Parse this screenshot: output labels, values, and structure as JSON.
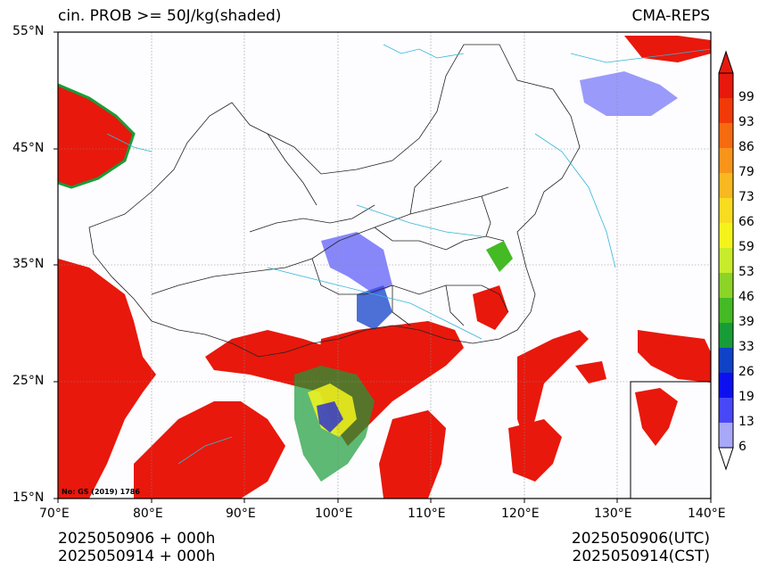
{
  "title_left": "cin. PROB >= 50J/kg(shaded)",
  "title_right": "CMA-REPS",
  "map": {
    "lon_range": [
      70,
      140
    ],
    "lat_range": [
      15,
      55
    ],
    "lon_ticks": [
      "70°E",
      "80°E",
      "90°E",
      "100°E",
      "110°E",
      "120°E",
      "130°E",
      "140°E"
    ],
    "lat_ticks": [
      "55°N",
      "45°N",
      "35°N",
      "25°N",
      "15°N"
    ],
    "review_number": "No: GS (2019) 1786",
    "grid": true
  },
  "colorbar": {
    "labels": [
      "99",
      "93",
      "86",
      "79",
      "73",
      "66",
      "59",
      "53",
      "46",
      "39",
      "33",
      "26",
      "19",
      "13",
      "6"
    ],
    "colors": [
      "#e8180c",
      "#f23a08",
      "#f66a10",
      "#f8941a",
      "#f8b820",
      "#f8dc20",
      "#f4f41c",
      "#c8ec2c",
      "#8cd428",
      "#44ba24",
      "#189c38",
      "#1042c8",
      "#0c10f0",
      "#4848f8",
      "#a8a8f8"
    ],
    "extend": "both"
  },
  "footer": {
    "left_line1": "2025050906  +  000h",
    "left_line2": "2025050914  +  000h",
    "right_line1": "2025050906(UTC)",
    "right_line2": "2025050914(CST)"
  }
}
